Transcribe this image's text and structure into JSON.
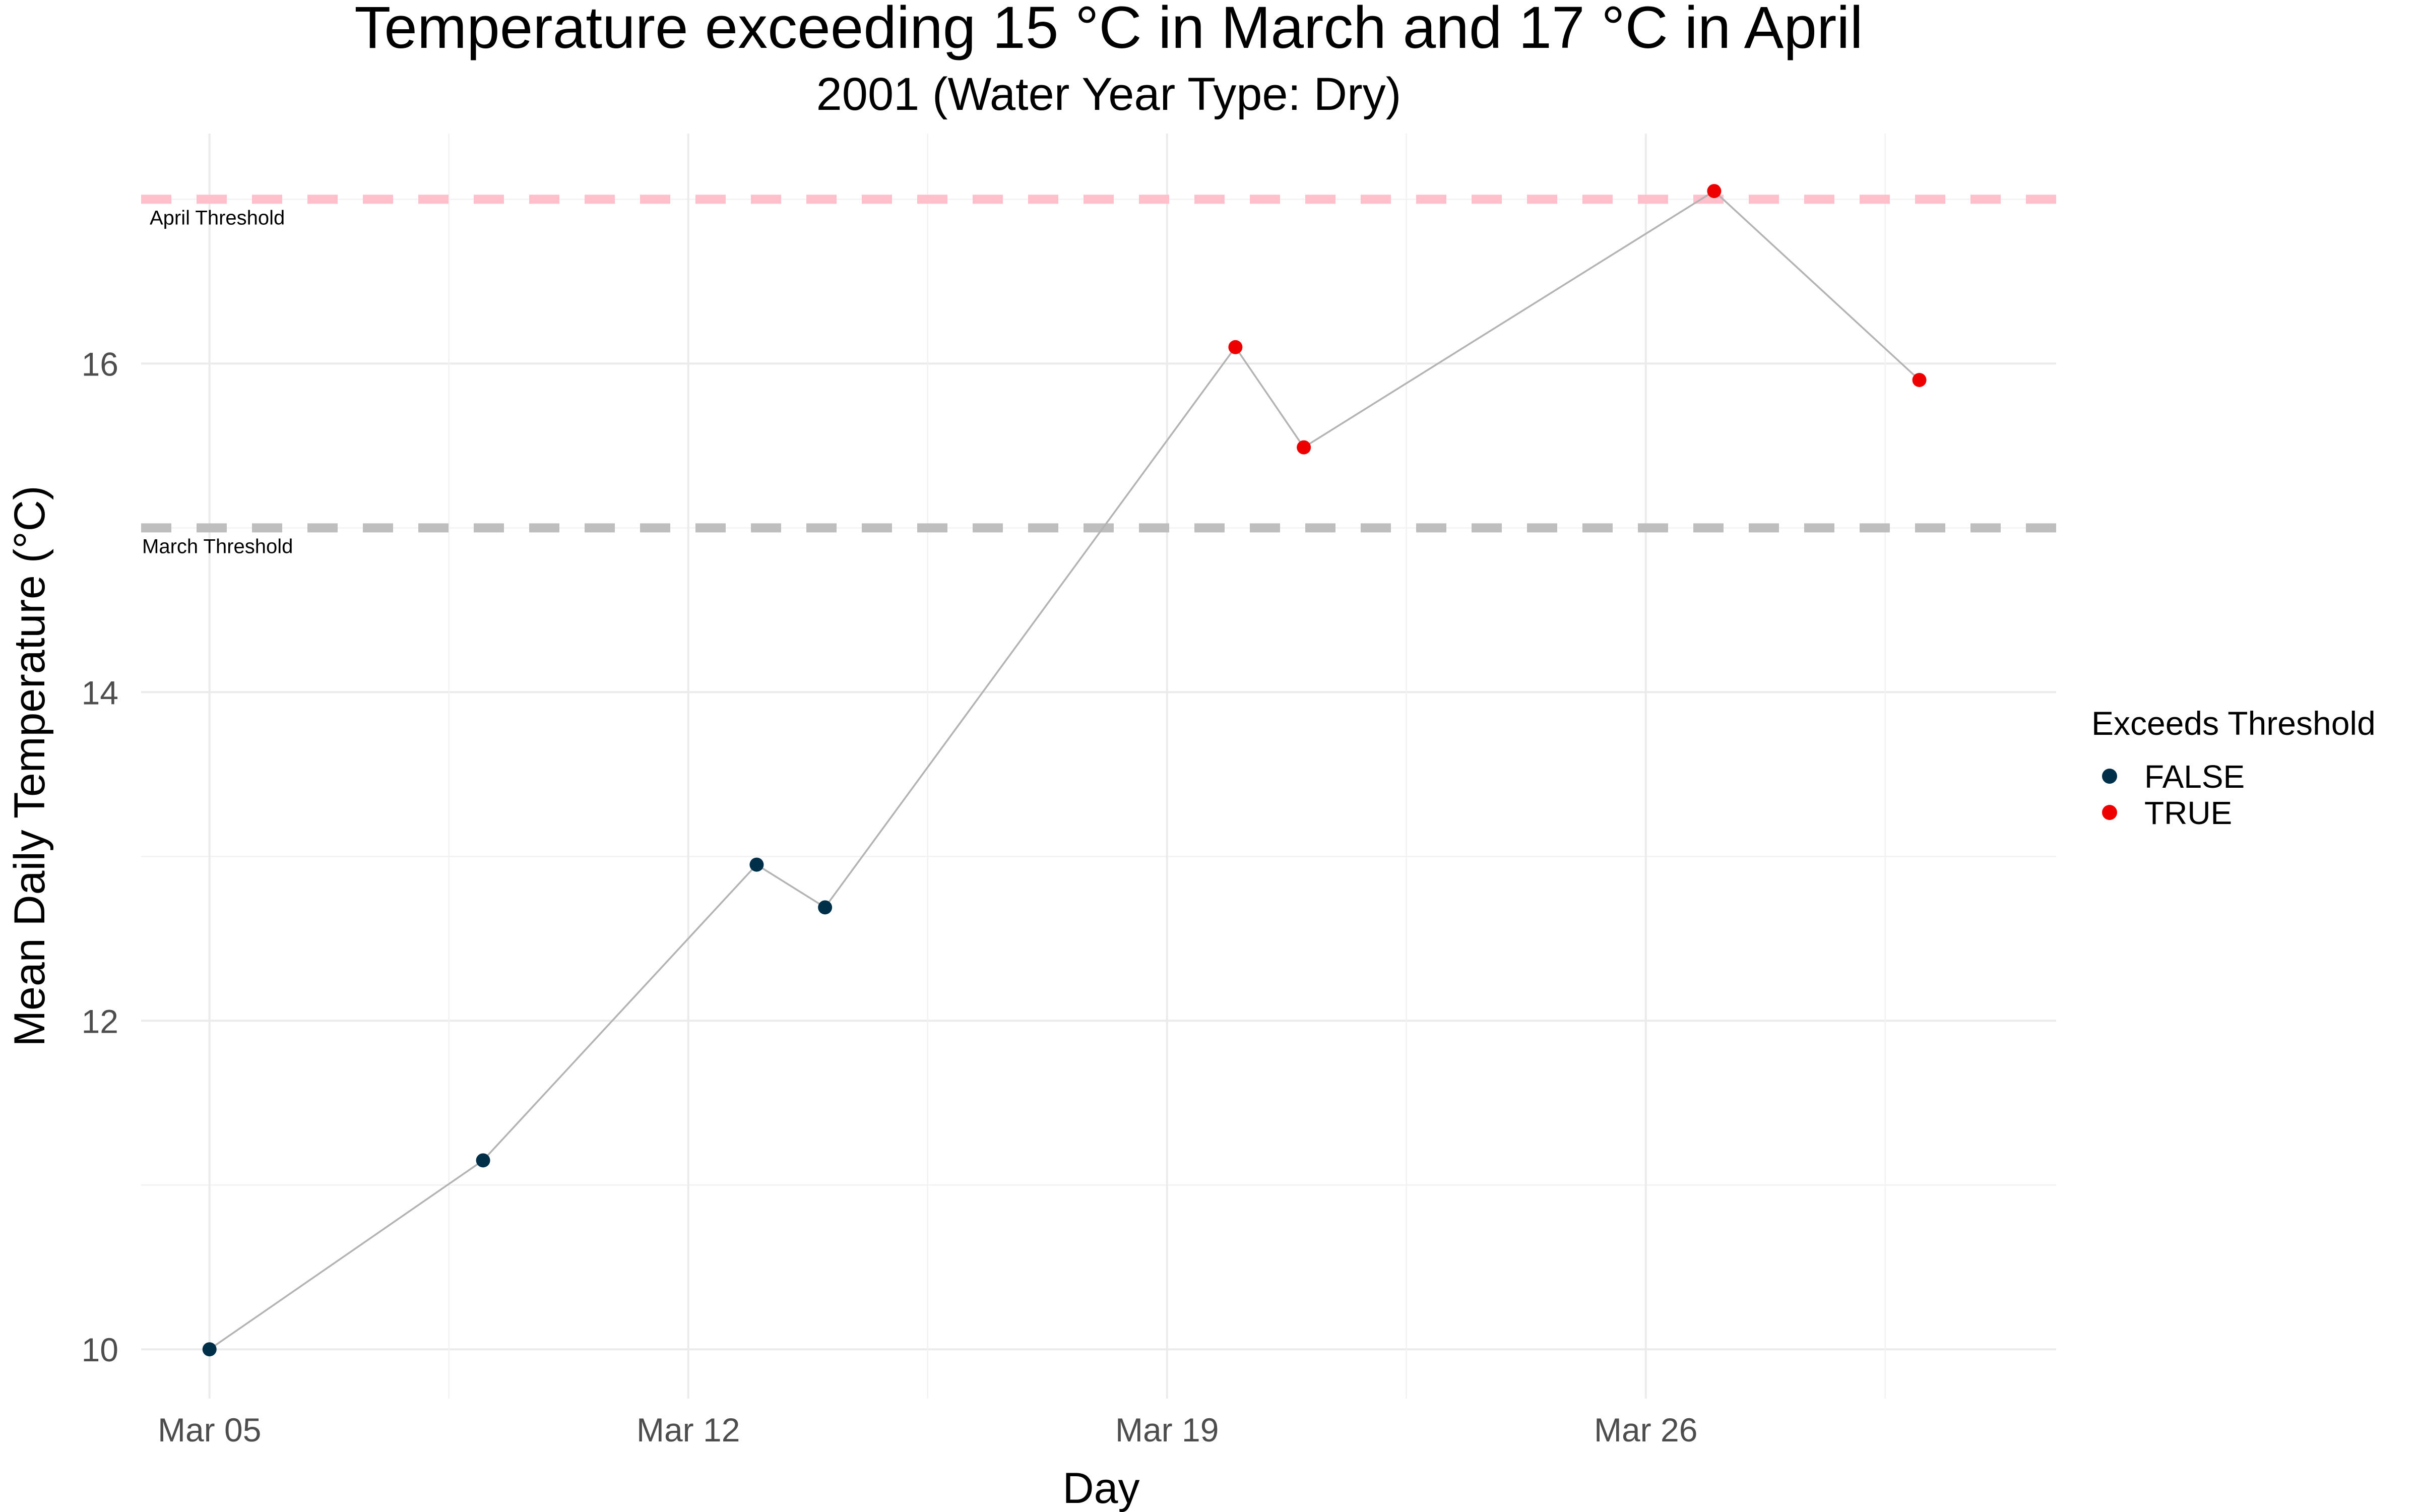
{
  "chart_data": {
    "type": "scatter",
    "title": "Temperature exceeding 15 °C in March and 17 °C in April",
    "subtitle": "2001 (Water Year Type: Dry)",
    "xlabel": "Day",
    "ylabel": "Mean Daily Temperature (°C)",
    "x_ticks": [
      {
        "value": "2001-03-05",
        "label": "Mar 05"
      },
      {
        "value": "2001-03-12",
        "label": "Mar 12"
      },
      {
        "value": "2001-03-19",
        "label": "Mar 19"
      },
      {
        "value": "2001-03-26",
        "label": "Mar 26"
      }
    ],
    "xlim": [
      "2001-03-04",
      "2001-04-01"
    ],
    "y_ticks": [
      10,
      12,
      14,
      16
    ],
    "ylim": [
      9.7,
      17.4
    ],
    "grid": true,
    "thresholds": [
      {
        "name": "April Threshold",
        "value": 17,
        "color": "#ffc0cb"
      },
      {
        "name": "March Threshold",
        "value": 15,
        "color": "#bebebe"
      }
    ],
    "line_color": "#b3b3b3",
    "legend": {
      "title": "Exceeds Threshold",
      "placement": "right",
      "entries": [
        {
          "label": "FALSE",
          "color": "#003049"
        },
        {
          "label": "TRUE",
          "color": "#ee0000"
        }
      ]
    },
    "series": [
      {
        "points": [
          {
            "x": "2001-03-05",
            "y": 10.0,
            "exceeds": "FALSE"
          },
          {
            "x": "2001-03-09",
            "y": 11.15,
            "exceeds": "FALSE"
          },
          {
            "x": "2001-03-13",
            "y": 12.95,
            "exceeds": "FALSE"
          },
          {
            "x": "2001-03-14",
            "y": 12.69,
            "exceeds": "FALSE"
          },
          {
            "x": "2001-03-20",
            "y": 16.1,
            "exceeds": "TRUE"
          },
          {
            "x": "2001-03-21",
            "y": 15.49,
            "exceeds": "TRUE"
          },
          {
            "x": "2001-03-27",
            "y": 17.05,
            "exceeds": "TRUE"
          },
          {
            "x": "2001-03-30",
            "y": 15.9,
            "exceeds": "TRUE"
          }
        ]
      }
    ]
  }
}
